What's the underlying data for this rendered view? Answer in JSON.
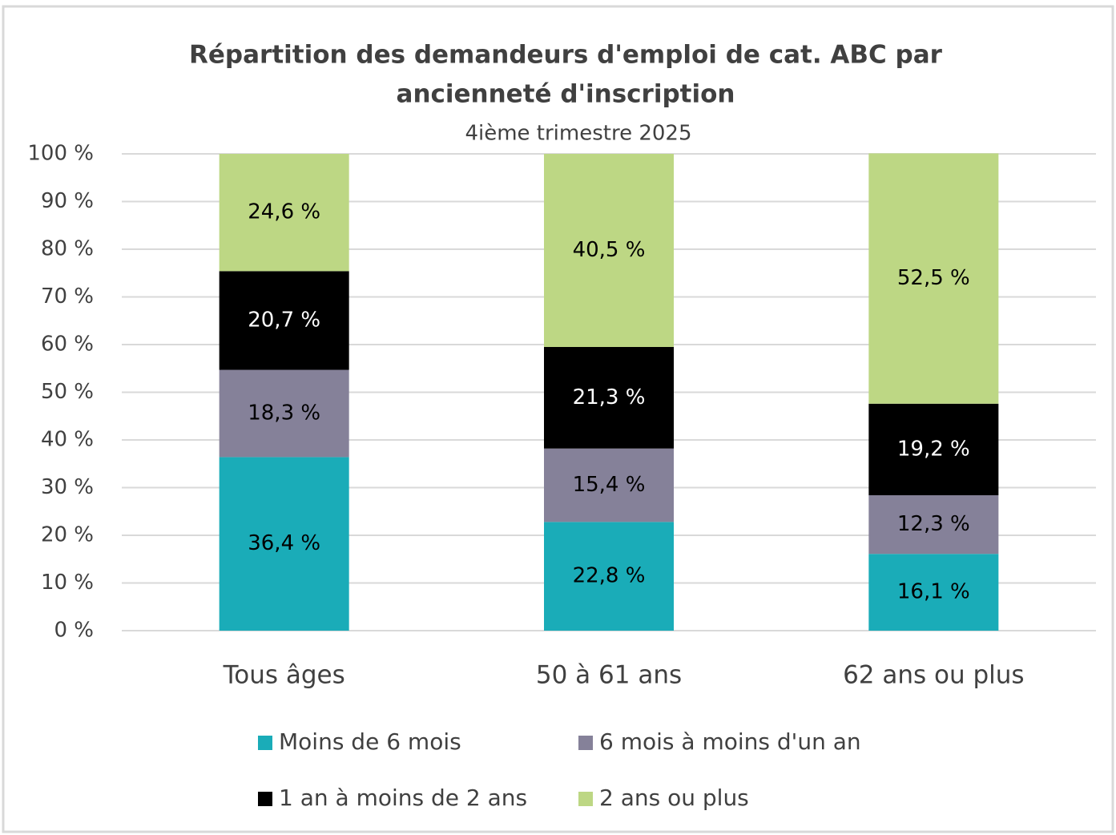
{
  "chart_data": {
    "type": "stacked_bar",
    "title": [
      "Répartition des demandeurs d'emploi de cat. ABC par",
      "ancienneté d'inscription"
    ],
    "subtitle": "4ième trimestre 2025",
    "categories": [
      "Tous âges",
      "50 à 61 ans",
      "62 ans ou plus"
    ],
    "series": [
      {
        "name": "Moins de 6 mois",
        "color": "#1aacb8",
        "values": [
          36.4,
          22.8,
          16.1
        ],
        "value_labels": [
          "36,4 %",
          "22,8 %",
          "16,1 %"
        ]
      },
      {
        "name": "6 mois à moins d'un an",
        "color": "#858199",
        "values": [
          18.3,
          15.4,
          12.3
        ],
        "value_labels": [
          "18,3 %",
          "15,4 %",
          "12,3 %"
        ]
      },
      {
        "name": "1 an à moins de 2 ans",
        "color": "#000000",
        "values": [
          20.7,
          21.3,
          19.2
        ],
        "value_labels": [
          "20,7 %",
          "21,3 %",
          "19,2 %"
        ]
      },
      {
        "name": "2 ans ou plus",
        "color": "#bdd784",
        "values": [
          24.6,
          40.5,
          52.5
        ],
        "value_labels": [
          "24,6 %",
          "40,5 %",
          "52,5 %"
        ]
      }
    ],
    "ylim": [
      0,
      100
    ],
    "yticks": [
      {
        "value": 0,
        "label": "0 %"
      },
      {
        "value": 10,
        "label": "10 %"
      },
      {
        "value": 20,
        "label": "20 %"
      },
      {
        "value": 30,
        "label": "30 %"
      },
      {
        "value": 40,
        "label": "40 %"
      },
      {
        "value": 50,
        "label": "50 %"
      },
      {
        "value": 60,
        "label": "60 %"
      },
      {
        "value": 70,
        "label": "70 %"
      },
      {
        "value": 80,
        "label": "80 %"
      },
      {
        "value": 90,
        "label": "90 %"
      },
      {
        "value": 100,
        "label": "100 %"
      }
    ],
    "grid": true
  }
}
